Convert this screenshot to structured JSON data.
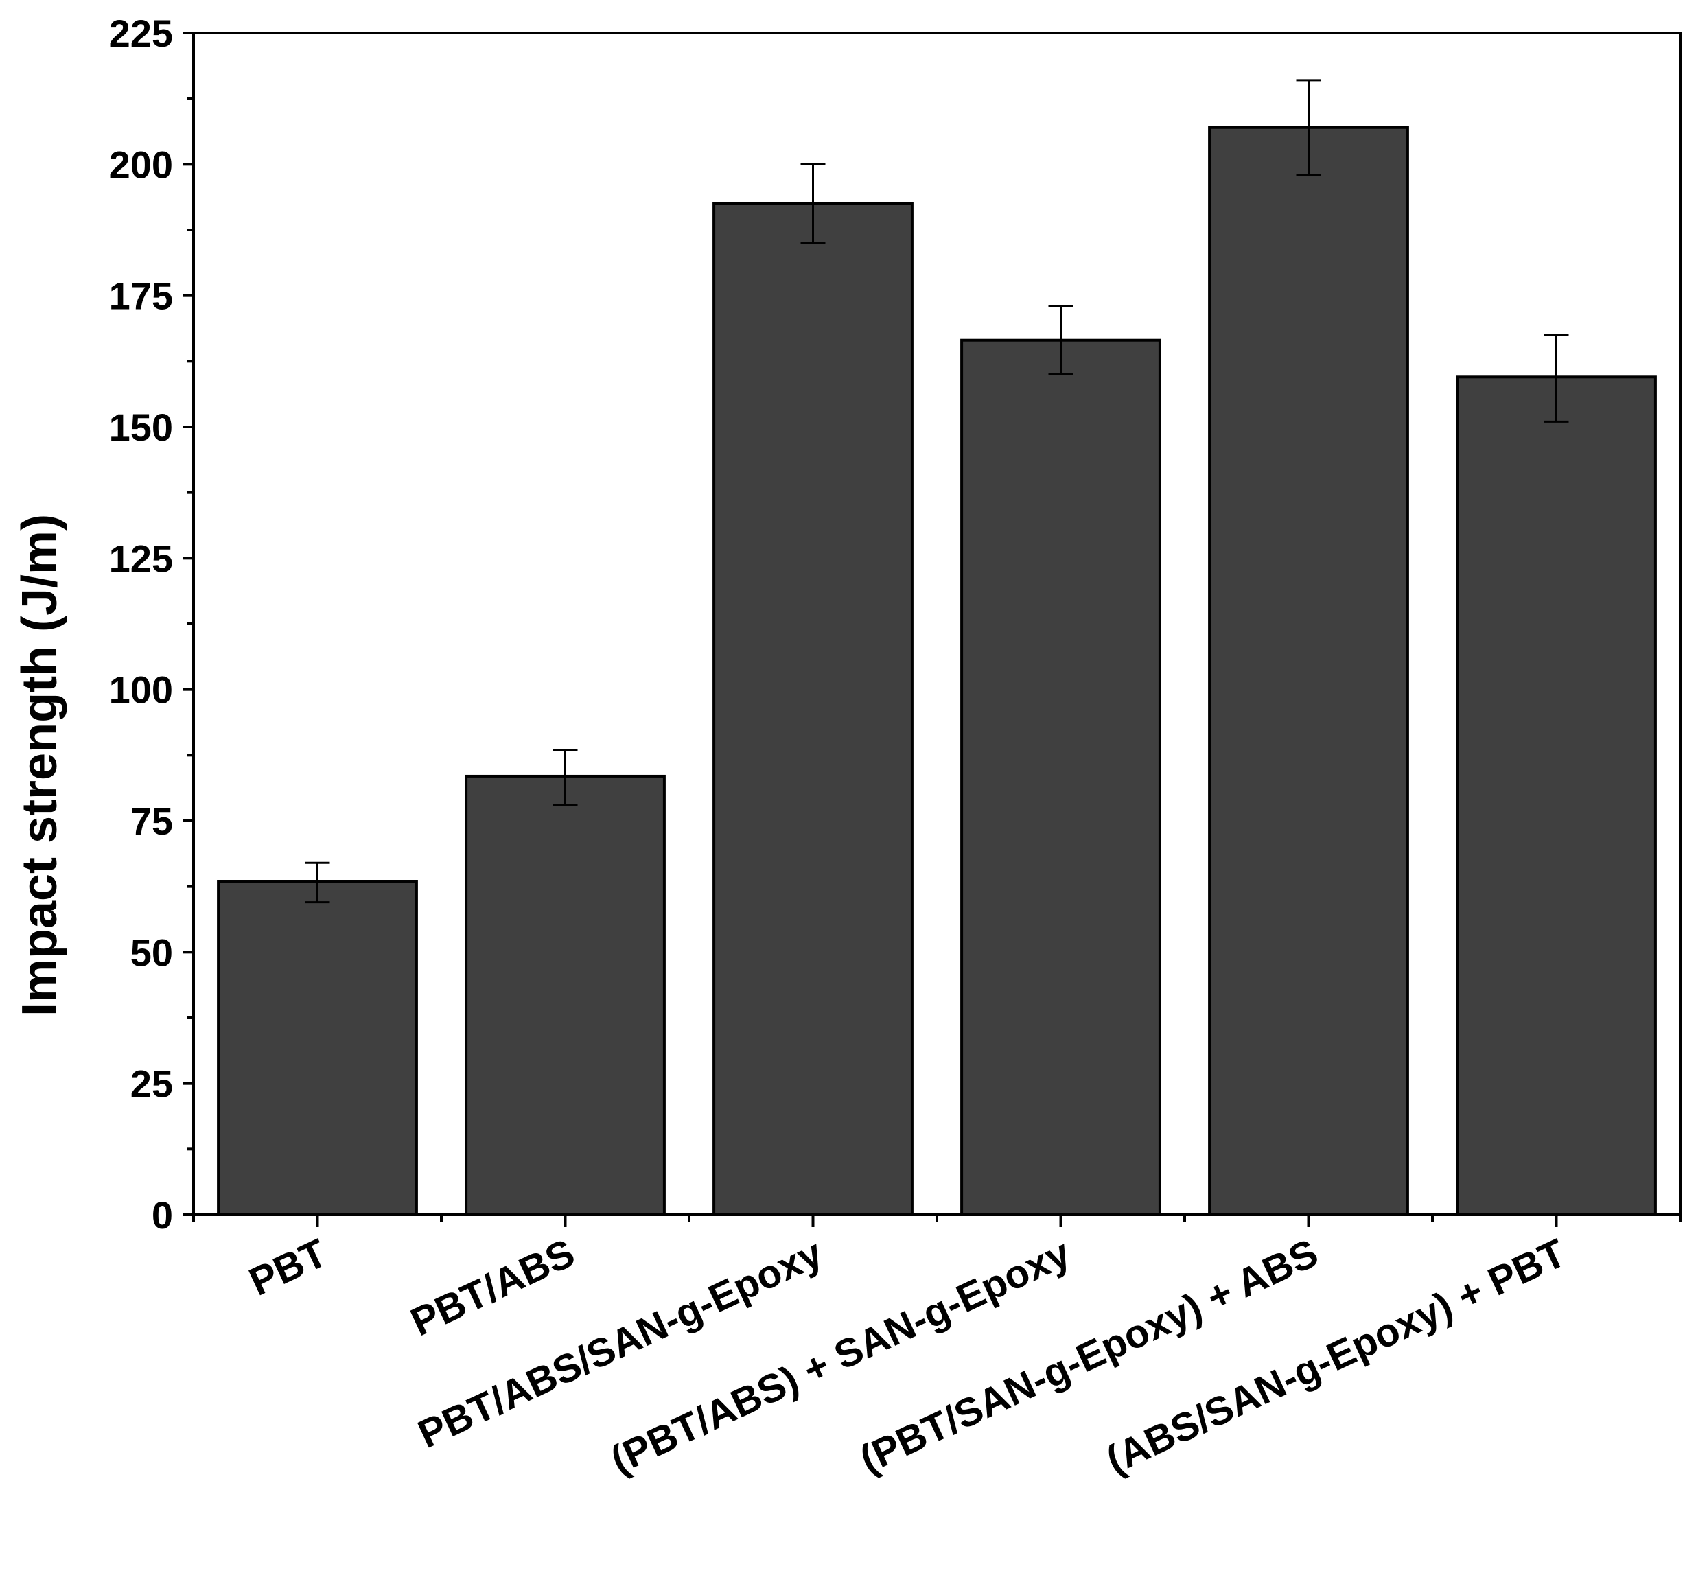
{
  "chart_data": {
    "type": "bar",
    "title": "",
    "xlabel": "",
    "ylabel": "Impact strength (J/m)",
    "categories": [
      "PBT",
      "PBT/ABS",
      "PBT/ABS/SAN-g-Epoxy",
      "(PBT/ABS) + SAN-g-Epoxy",
      "(PBT/SAN-g-Epoxy) + ABS",
      "(ABS/SAN-g-Epoxy) + PBT"
    ],
    "values": [
      63.5,
      83.5,
      192.5,
      166.5,
      207,
      159.5
    ],
    "error_low": [
      59.5,
      78,
      185,
      160,
      198,
      151
    ],
    "error_high": [
      67,
      88.5,
      200,
      173,
      216,
      167.5
    ],
    "ylim": [
      0,
      225
    ],
    "yticks": [
      0,
      25,
      50,
      75,
      100,
      125,
      150,
      175,
      200,
      225
    ],
    "bar_color": "#404040",
    "edge_color": "#000000",
    "grid": false,
    "legend": "none"
  }
}
